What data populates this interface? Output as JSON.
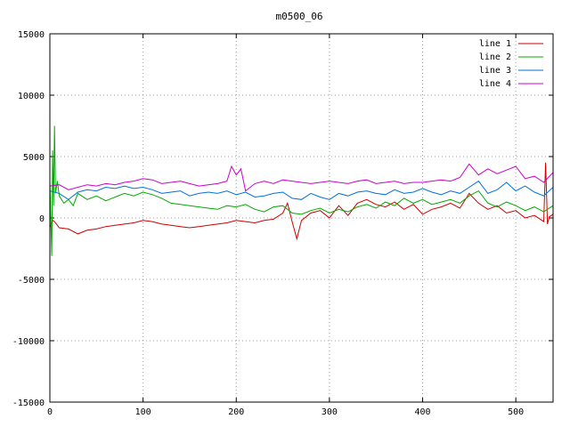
{
  "chart_data": {
    "type": "line",
    "title": "m0500_06",
    "xlabel": "",
    "ylabel": "",
    "xlim": [
      0,
      540
    ],
    "ylim": [
      -15000,
      15000
    ],
    "x_ticks": [
      0,
      100,
      200,
      300,
      400,
      500
    ],
    "y_ticks": [
      -15000,
      -10000,
      -5000,
      0,
      5000,
      10000,
      15000
    ],
    "grid": true,
    "legend_position": "top-right",
    "series": [
      {
        "name": "line 1",
        "color": "#cc0000",
        "x": [
          0,
          3,
          5,
          10,
          20,
          30,
          40,
          50,
          60,
          70,
          80,
          90,
          100,
          110,
          120,
          130,
          140,
          150,
          160,
          170,
          180,
          190,
          200,
          210,
          220,
          230,
          240,
          250,
          255,
          260,
          265,
          270,
          280,
          290,
          300,
          310,
          320,
          330,
          340,
          350,
          360,
          370,
          380,
          390,
          400,
          410,
          420,
          430,
          440,
          450,
          460,
          470,
          480,
          490,
          500,
          510,
          520,
          530,
          532,
          534,
          536,
          540
        ],
        "values": [
          -800,
          -200,
          -300,
          -800,
          -900,
          -1300,
          -1000,
          -900,
          -700,
          -600,
          -500,
          -400,
          -200,
          -300,
          -500,
          -600,
          -700,
          -800,
          -700,
          -600,
          -500,
          -400,
          -200,
          -300,
          -400,
          -200,
          -100,
          400,
          1200,
          -300,
          -1700,
          -200,
          400,
          600,
          0,
          1000,
          200,
          1200,
          1500,
          1100,
          900,
          1300,
          700,
          1100,
          300,
          700,
          900,
          1200,
          800,
          2000,
          1200,
          700,
          1000,
          400,
          600,
          0,
          200,
          -300,
          4500,
          -500,
          100,
          300
        ]
      },
      {
        "name": "line 2",
        "color": "#00aa00",
        "x": [
          0,
          2,
          3,
          4,
          5,
          6,
          8,
          10,
          15,
          20,
          25,
          30,
          40,
          50,
          60,
          70,
          80,
          90,
          100,
          110,
          120,
          130,
          140,
          150,
          160,
          170,
          180,
          190,
          200,
          210,
          220,
          230,
          240,
          250,
          260,
          270,
          280,
          290,
          300,
          310,
          320,
          330,
          340,
          350,
          360,
          370,
          380,
          390,
          400,
          410,
          420,
          430,
          440,
          450,
          460,
          470,
          480,
          490,
          500,
          510,
          520,
          530,
          540
        ],
        "values": [
          3000,
          -3100,
          5500,
          1000,
          7500,
          2000,
          3000,
          1800,
          1200,
          1500,
          1000,
          2000,
          1500,
          1800,
          1400,
          1700,
          2000,
          1800,
          2100,
          1900,
          1600,
          1200,
          1100,
          1000,
          900,
          800,
          700,
          1000,
          900,
          1100,
          700,
          500,
          900,
          1000,
          400,
          300,
          600,
          800,
          400,
          700,
          500,
          900,
          1100,
          800,
          1300,
          1000,
          1600,
          1200,
          1500,
          1100,
          1300,
          1500,
          1200,
          1800,
          2200,
          1200,
          900,
          1300,
          1000,
          600,
          900,
          500,
          1000
        ]
      },
      {
        "name": "line 3",
        "color": "#0070dd",
        "x": [
          0,
          10,
          20,
          30,
          40,
          50,
          60,
          70,
          80,
          90,
          100,
          110,
          120,
          130,
          140,
          150,
          160,
          170,
          180,
          190,
          200,
          210,
          220,
          230,
          240,
          250,
          260,
          270,
          280,
          290,
          300,
          310,
          320,
          330,
          340,
          350,
          360,
          370,
          380,
          390,
          400,
          410,
          420,
          430,
          440,
          450,
          460,
          470,
          480,
          490,
          500,
          510,
          520,
          530,
          540
        ],
        "values": [
          2200,
          2000,
          1500,
          2100,
          2300,
          2200,
          2500,
          2400,
          2600,
          2400,
          2500,
          2300,
          2000,
          2100,
          2200,
          1800,
          2000,
          2100,
          2000,
          2200,
          1900,
          2100,
          1700,
          1800,
          2000,
          2100,
          1600,
          1500,
          2000,
          1700,
          1500,
          2000,
          1800,
          2100,
          2200,
          2000,
          1900,
          2300,
          2000,
          2100,
          2400,
          2100,
          1900,
          2200,
          2000,
          2500,
          3000,
          2000,
          2300,
          2900,
          2200,
          2600,
          2100,
          1800,
          2500
        ]
      },
      {
        "name": "line 4",
        "color": "#cc00cc",
        "x": [
          0,
          10,
          20,
          30,
          40,
          50,
          60,
          70,
          80,
          90,
          100,
          110,
          120,
          130,
          140,
          150,
          160,
          170,
          180,
          190,
          195,
          200,
          205,
          210,
          220,
          230,
          240,
          250,
          260,
          270,
          280,
          290,
          300,
          310,
          320,
          330,
          340,
          350,
          360,
          370,
          380,
          390,
          400,
          410,
          420,
          430,
          440,
          450,
          460,
          470,
          480,
          490,
          500,
          510,
          520,
          530,
          540
        ],
        "values": [
          2600,
          2700,
          2300,
          2500,
          2700,
          2600,
          2800,
          2700,
          2900,
          3000,
          3200,
          3100,
          2800,
          2900,
          3000,
          2800,
          2600,
          2700,
          2800,
          3000,
          4200,
          3500,
          4000,
          2200,
          2800,
          3000,
          2800,
          3100,
          3000,
          2900,
          2800,
          2900,
          3000,
          2900,
          2800,
          3000,
          3100,
          2800,
          2900,
          3000,
          2800,
          2900,
          2900,
          3000,
          3100,
          3000,
          3300,
          4400,
          3500,
          4000,
          3600,
          3900,
          4200,
          3200,
          3400,
          2900,
          3700
        ]
      }
    ]
  }
}
